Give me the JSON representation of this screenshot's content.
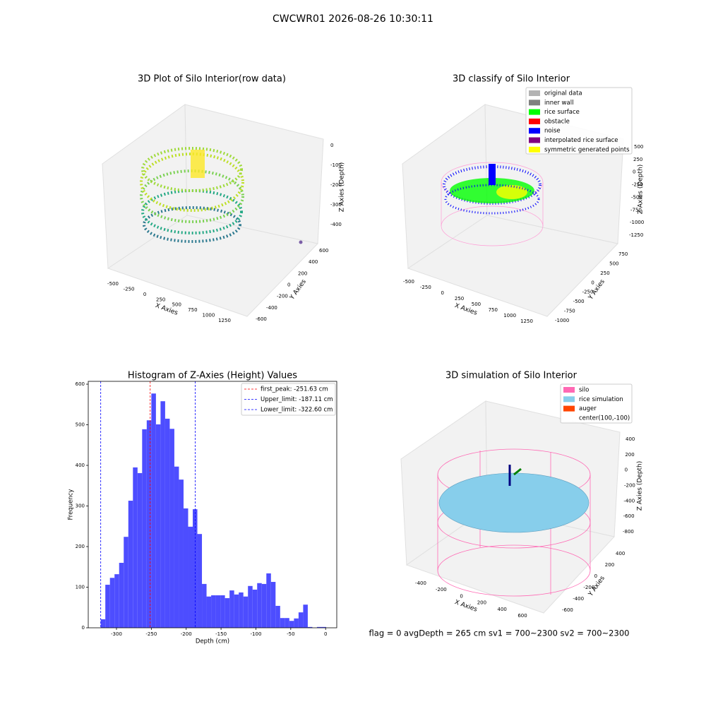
{
  "suptitle": "CWCWR01 2026-08-26 10:30:11",
  "footer": "flag = 0     avgDepth = 265 cm  sv1 = 700~2300  sv2 = 700~2300",
  "chart_data": [
    {
      "type": "scatter3d",
      "title": "3D Plot of Silo Interior(row data)",
      "x_label": "X Axies",
      "y_label": "Y Axies",
      "z_label": "Z Axies (Depth)",
      "xticks": [
        -500,
        -250,
        0,
        250,
        500,
        750,
        1000,
        1250
      ],
      "yticks": [
        -600,
        -400,
        -200,
        0,
        200,
        400,
        600
      ],
      "zticks": [
        0,
        -100,
        -200,
        -300,
        -400
      ]
    },
    {
      "type": "scatter3d",
      "title": "3D classify of Silo Interior",
      "x_label": "X Axies",
      "y_label": "Y Axies",
      "z_label": "Z Axies (Depth)",
      "xticks": [
        -500,
        -250,
        0,
        250,
        500,
        750,
        1000,
        1250
      ],
      "yticks": [
        -1000,
        -750,
        -500,
        -250,
        0,
        250,
        500,
        750
      ],
      "zticks": [
        500,
        250,
        0,
        -250,
        -500,
        -750,
        -1000,
        -1250
      ],
      "series": [
        {
          "name": "original data",
          "color": "#b3b3b3"
        },
        {
          "name": "inner wall",
          "color": "#808080"
        },
        {
          "name": "rice surface",
          "color": "#00ff00"
        },
        {
          "name": "obstacle",
          "color": "#ff0000"
        },
        {
          "name": "noise",
          "color": "#0000ff"
        },
        {
          "name": "interpolated rice surface",
          "color": "#800080"
        },
        {
          "name": "symmetric generated points",
          "color": "#ffff00"
        }
      ]
    },
    {
      "type": "histogram",
      "title": "Histogram of Z-Axies (Height) Values",
      "x_label": "Depth (cm)",
      "y_label": "Frequency",
      "color": "#4d4dff",
      "bins": [
        -322.6,
        -316.0,
        -309.4,
        -302.8,
        -296.2,
        -289.6,
        -283.0,
        -276.4,
        -269.8,
        -263.2,
        -256.6,
        -250.0,
        -243.4,
        -236.8,
        -230.2,
        -223.6,
        -217.0,
        -210.4,
        -203.8,
        -197.2,
        -190.6,
        -184.0,
        -177.4,
        -170.8,
        -164.2,
        -157.6,
        -151.0,
        -144.4,
        -137.8,
        -131.2,
        -124.6,
        -118.0,
        -111.4,
        -104.8,
        -98.2,
        -91.6,
        -85.0,
        -78.4,
        -71.8,
        -65.2,
        -58.6,
        -52.0,
        -45.4,
        -38.8,
        -32.2,
        -25.6,
        -19.0,
        -12.4,
        -5.8,
        0.8
      ],
      "values": [
        21,
        106,
        123,
        132,
        160,
        224,
        313,
        395,
        381,
        489,
        511,
        577,
        501,
        558,
        515,
        490,
        397,
        365,
        294,
        249,
        292,
        231,
        108,
        77,
        80,
        80,
        80,
        73,
        92,
        82,
        87,
        77,
        103,
        94,
        110,
        108,
        134,
        113,
        54,
        24,
        24,
        17,
        23,
        38,
        57,
        2,
        0,
        2,
        2
      ],
      "xlim": [
        -340.5,
        16
      ],
      "ylim": [
        0,
        607
      ],
      "xticks": [
        -300,
        -250,
        -200,
        -150,
        -100,
        -50,
        0
      ],
      "yticks": [
        0,
        100,
        200,
        300,
        400,
        500,
        600
      ],
      "vlines": [
        {
          "name": "first_peak: -251.63 cm",
          "value": -251.63,
          "color": "#ff0000"
        },
        {
          "name": "Upper_limit: -187.11 cm",
          "value": -187.11,
          "color": "#0000ff"
        },
        {
          "name": "Lower_limit: -322.60 cm",
          "value": -322.6,
          "color": "#0000ff"
        }
      ]
    },
    {
      "type": "surface3d",
      "title": "3D simulation of Silo Interior",
      "x_label": "X Axies",
      "y_label": "Y Axies",
      "z_label": "Z Axies (Depth)",
      "xticks": [
        -400,
        -200,
        0,
        200,
        400,
        600
      ],
      "yticks": [
        -600,
        -400,
        -200,
        0,
        200,
        400
      ],
      "zticks": [
        400,
        200,
        0,
        -200,
        -400,
        -600,
        -800
      ],
      "series": [
        {
          "name": "silo",
          "color": "#ff69b4"
        },
        {
          "name": "rice simulation",
          "color": "#87ceeb"
        },
        {
          "name": "auger",
          "color": "#ff4500"
        },
        {
          "name": "center(100,-100)",
          "color": "#ffffff"
        }
      ]
    }
  ]
}
